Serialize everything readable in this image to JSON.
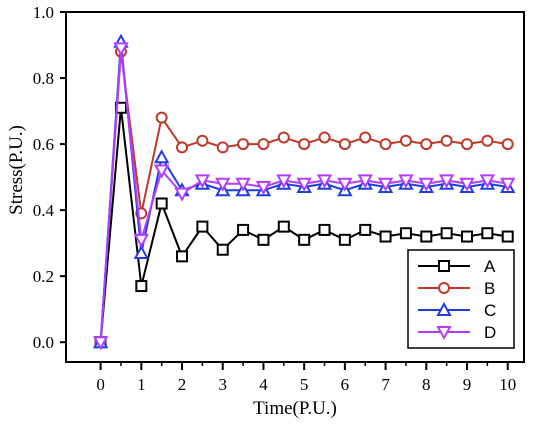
{
  "chart_data": {
    "type": "line",
    "title": "",
    "xlabel": "Time(P.U.)",
    "ylabel": "Stress(P.U.)",
    "xlim": [
      -0.85,
      10.4
    ],
    "ylim": [
      -0.06,
      1.0
    ],
    "x_ticks": [
      0,
      1,
      2,
      3,
      4,
      5,
      6,
      7,
      8,
      9,
      10
    ],
    "x_tick_labels": [
      "0",
      "1",
      "2",
      "3",
      "4",
      "5",
      "6",
      "7",
      "8",
      "9",
      "10"
    ],
    "y_ticks": [
      0.0,
      0.2,
      0.4,
      0.6,
      0.8,
      1.0
    ],
    "y_tick_labels": [
      "0.0",
      "0.2",
      "0.4",
      "0.6",
      "0.8",
      "1.0"
    ],
    "grid": false,
    "legend_position": "bottom-right",
    "x": [
      0,
      0.5,
      1,
      1.5,
      2,
      2.5,
      3,
      3.5,
      4,
      4.5,
      5,
      5.5,
      6,
      6.5,
      7,
      7.5,
      8,
      8.5,
      9,
      9.5,
      10
    ],
    "series": [
      {
        "name": "A",
        "color": "#000000",
        "marker": "square",
        "values": [
          0.0,
          0.71,
          0.17,
          0.42,
          0.26,
          0.35,
          0.28,
          0.34,
          0.31,
          0.35,
          0.31,
          0.34,
          0.31,
          0.34,
          0.32,
          0.33,
          0.32,
          0.33,
          0.32,
          0.33,
          0.32
        ]
      },
      {
        "name": "B",
        "color": "#c0392b",
        "marker": "circle",
        "values": [
          0.0,
          0.88,
          0.39,
          0.68,
          0.59,
          0.61,
          0.59,
          0.6,
          0.6,
          0.62,
          0.6,
          0.62,
          0.6,
          0.62,
          0.6,
          0.61,
          0.6,
          0.61,
          0.6,
          0.61,
          0.6
        ]
      },
      {
        "name": "C",
        "color": "#1f3de0",
        "marker": "triangle-up",
        "values": [
          0.0,
          0.91,
          0.27,
          0.56,
          0.46,
          0.48,
          0.46,
          0.46,
          0.46,
          0.48,
          0.47,
          0.48,
          0.46,
          0.48,
          0.47,
          0.48,
          0.47,
          0.48,
          0.47,
          0.48,
          0.47
        ]
      },
      {
        "name": "D",
        "color": "#b43cff",
        "marker": "triangle-down",
        "values": [
          0.0,
          0.89,
          0.31,
          0.52,
          0.45,
          0.49,
          0.48,
          0.48,
          0.47,
          0.49,
          0.48,
          0.49,
          0.48,
          0.49,
          0.48,
          0.49,
          0.48,
          0.49,
          0.48,
          0.49,
          0.48
        ]
      }
    ]
  }
}
